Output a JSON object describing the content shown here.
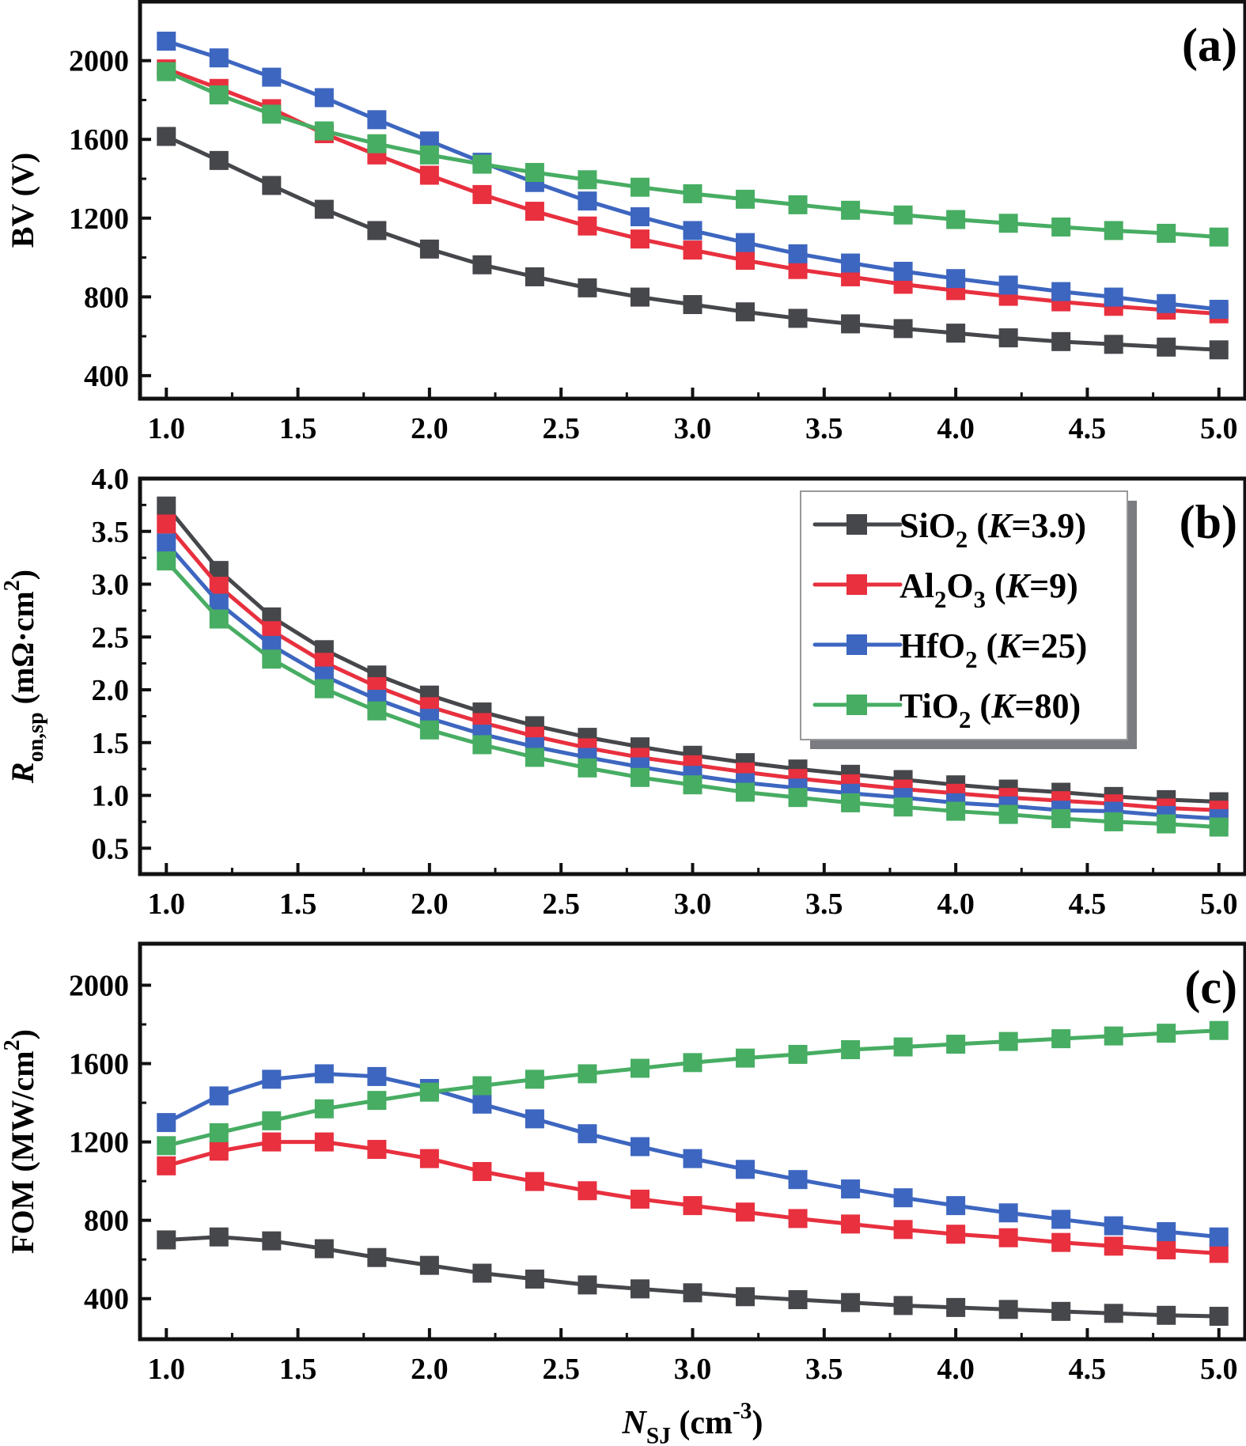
{
  "chart_data": [
    {
      "type": "line",
      "panel_label": "(a)",
      "ylabel": [
        {
          "t": "BV (V)"
        }
      ],
      "xlim": [
        0.9,
        5.1
      ],
      "ylim": [
        283,
        2300
      ],
      "yticks": [
        400,
        800,
        1200,
        1600,
        2000
      ],
      "ytick_labels": [
        "400",
        "800",
        "1200",
        "1600",
        "2000"
      ],
      "xticks": [
        1.0,
        1.5,
        2.0,
        2.5,
        3.0,
        3.5,
        4.0,
        4.5,
        5.0
      ],
      "xtick_labels": [
        "1.0",
        "1.5",
        "2.0",
        "2.5",
        "3.0",
        "3.5",
        "4.0",
        "4.5",
        "5.0"
      ],
      "x": [
        1.0,
        1.2,
        1.4,
        1.6,
        1.8,
        2.0,
        2.2,
        2.4,
        2.6,
        2.8,
        3.0,
        3.2,
        3.4,
        3.6,
        3.8,
        4.0,
        4.2,
        4.4,
        4.6,
        4.8,
        5.0
      ],
      "series": [
        {
          "key": "SiO2",
          "color": "#45474b",
          "values": [
            1615,
            1493,
            1366,
            1245,
            1137,
            1043,
            963,
            902,
            846,
            799,
            761,
            724,
            691,
            663,
            639,
            616,
            592,
            573,
            559,
            545,
            531
          ]
        },
        {
          "key": "Al2O3",
          "color": "#e8303f",
          "values": [
            1958,
            1859,
            1756,
            1629,
            1521,
            1418,
            1320,
            1235,
            1160,
            1094,
            1038,
            986,
            939,
            902,
            864,
            832,
            803,
            775,
            752,
            733,
            714
          ]
        },
        {
          "key": "HfO2",
          "color": "#3d66c0",
          "values": [
            2099,
            2014,
            1916,
            1812,
            1700,
            1592,
            1484,
            1381,
            1287,
            1207,
            1137,
            1076,
            1019,
            972,
            930,
            893,
            860,
            827,
            799,
            766,
            737
          ]
        },
        {
          "key": "TiO2",
          "color": "#47ad63",
          "values": [
            1944,
            1826,
            1728,
            1643,
            1578,
            1521,
            1474,
            1432,
            1395,
            1357,
            1324,
            1296,
            1268,
            1240,
            1216,
            1193,
            1174,
            1155,
            1137,
            1123,
            1104
          ]
        }
      ]
    },
    {
      "type": "line",
      "panel_label": "(b)",
      "ylabel": [
        {
          "t": "R",
          "s": "i"
        },
        {
          "t": "on,sp",
          "s": "sub"
        },
        {
          "t": " (mΩ·cm"
        },
        {
          "t": "2",
          "s": "sup"
        },
        {
          "t": ")"
        }
      ],
      "xlim": [
        0.9,
        5.1
      ],
      "ylim": [
        0.255,
        4.0
      ],
      "yticks": [
        0.5,
        1.0,
        1.5,
        2.0,
        2.5,
        3.0,
        3.5,
        4.0
      ],
      "ytick_labels": [
        "0.5",
        "1.0",
        "1.5",
        "2.0",
        "2.5",
        "3.0",
        "3.5",
        "4.0"
      ],
      "xticks": [
        1.0,
        1.5,
        2.0,
        2.5,
        3.0,
        3.5,
        4.0,
        4.5,
        5.0
      ],
      "xtick_labels": [
        "1.0",
        "1.5",
        "2.0",
        "2.5",
        "3.0",
        "3.5",
        "4.0",
        "4.5",
        "5.0"
      ],
      "x": [
        1.0,
        1.2,
        1.4,
        1.6,
        1.8,
        2.0,
        2.2,
        2.4,
        2.6,
        2.8,
        3.0,
        3.2,
        3.4,
        3.6,
        3.8,
        4.0,
        4.2,
        4.4,
        4.6,
        4.8,
        5.0
      ],
      "series": [
        {
          "key": "SiO2",
          "color": "#45474b",
          "values": [
            3.74,
            3.13,
            2.69,
            2.38,
            2.14,
            1.95,
            1.79,
            1.66,
            1.55,
            1.46,
            1.38,
            1.31,
            1.25,
            1.2,
            1.15,
            1.1,
            1.06,
            1.03,
            0.99,
            0.96,
            0.94
          ]
        },
        {
          "key": "Al2O3",
          "color": "#e8303f",
          "values": [
            3.57,
            2.98,
            2.56,
            2.26,
            2.03,
            1.84,
            1.69,
            1.56,
            1.45,
            1.36,
            1.29,
            1.22,
            1.16,
            1.11,
            1.06,
            1.02,
            0.98,
            0.95,
            0.92,
            0.88,
            0.86
          ]
        },
        {
          "key": "HfO2",
          "color": "#3d66c0",
          "values": [
            3.39,
            2.82,
            2.42,
            2.13,
            1.91,
            1.73,
            1.58,
            1.46,
            1.36,
            1.27,
            1.19,
            1.12,
            1.07,
            1.02,
            0.98,
            0.93,
            0.9,
            0.86,
            0.85,
            0.81,
            0.78
          ]
        },
        {
          "key": "TiO2",
          "color": "#47ad63",
          "values": [
            3.22,
            2.67,
            2.29,
            2.01,
            1.8,
            1.62,
            1.48,
            1.36,
            1.26,
            1.17,
            1.1,
            1.03,
            0.98,
            0.93,
            0.89,
            0.85,
            0.82,
            0.78,
            0.75,
            0.73,
            0.7
          ]
        }
      ],
      "legend": {
        "placement": "top-right",
        "entries": [
          {
            "key": "SiO2",
            "color": "#45474b",
            "label": [
              {
                "t": "SiO"
              },
              {
                "t": "2",
                "s": "sub"
              },
              {
                "t": " ("
              },
              {
                "t": "K",
                "s": "i"
              },
              {
                "t": "=3.9)"
              }
            ]
          },
          {
            "key": "Al2O3",
            "color": "#e8303f",
            "label": [
              {
                "t": "Al"
              },
              {
                "t": "2",
                "s": "sub"
              },
              {
                "t": "O"
              },
              {
                "t": "3",
                "s": "sub"
              },
              {
                "t": " ("
              },
              {
                "t": "K",
                "s": "i"
              },
              {
                "t": "=9)"
              }
            ]
          },
          {
            "key": "HfO2",
            "color": "#3d66c0",
            "label": [
              {
                "t": "HfO"
              },
              {
                "t": "2",
                "s": "sub"
              },
              {
                "t": " ("
              },
              {
                "t": "K",
                "s": "i"
              },
              {
                "t": "=25)"
              }
            ]
          },
          {
            "key": "TiO2",
            "color": "#47ad63",
            "label": [
              {
                "t": "TiO"
              },
              {
                "t": "2",
                "s": "sub"
              },
              {
                "t": " ("
              },
              {
                "t": "K",
                "s": "i"
              },
              {
                "t": "=80)"
              }
            ]
          }
        ]
      }
    },
    {
      "type": "line",
      "panel_label": "(c)",
      "ylabel": [
        {
          "t": "FOM (MW/cm"
        },
        {
          "t": "2",
          "s": "sup"
        },
        {
          "t": ")"
        }
      ],
      "xlabel": [
        {
          "t": "N",
          "s": "i"
        },
        {
          "t": "SJ",
          "s": "sub"
        },
        {
          "t": " (cm"
        },
        {
          "t": "-3",
          "s": "sup"
        },
        {
          "t": ")"
        }
      ],
      "xlim": [
        0.9,
        5.1
      ],
      "ylim": [
        193,
        2212
      ],
      "yticks": [
        400,
        800,
        1200,
        1600,
        2000
      ],
      "ytick_labels": [
        "400",
        "800",
        "1200",
        "1600",
        "2000"
      ],
      "xticks": [
        1.0,
        1.5,
        2.0,
        2.5,
        3.0,
        3.5,
        4.0,
        4.5,
        5.0
      ],
      "xtick_labels": [
        "1.0",
        "1.5",
        "2.0",
        "2.5",
        "3.0",
        "3.5",
        "4.0",
        "4.5",
        "5.0"
      ],
      "x": [
        1.0,
        1.2,
        1.4,
        1.6,
        1.8,
        2.0,
        2.2,
        2.4,
        2.6,
        2.8,
        3.0,
        3.2,
        3.4,
        3.6,
        3.8,
        4.0,
        4.2,
        4.4,
        4.6,
        4.8,
        5.0
      ],
      "series": [
        {
          "key": "SiO2",
          "color": "#45474b",
          "values": [
            700,
            715,
            695,
            655,
            610,
            570,
            530,
            500,
            470,
            450,
            430,
            410,
            395,
            380,
            365,
            355,
            345,
            335,
            325,
            315,
            310
          ]
        },
        {
          "key": "Al2O3",
          "color": "#e8303f",
          "values": [
            1078,
            1153,
            1200,
            1200,
            1162,
            1115,
            1049,
            998,
            951,
            908,
            875,
            842,
            809,
            781,
            753,
            729,
            711,
            687,
            668,
            649,
            631
          ]
        },
        {
          "key": "HfO2",
          "color": "#3d66c0",
          "values": [
            1299,
            1435,
            1520,
            1548,
            1534,
            1473,
            1393,
            1318,
            1242,
            1176,
            1115,
            1060,
            1008,
            960,
            915,
            875,
            838,
            805,
            772,
            742,
            715
          ]
        },
        {
          "key": "TiO2",
          "color": "#47ad63",
          "values": [
            1181,
            1247,
            1308,
            1369,
            1412,
            1454,
            1487,
            1520,
            1548,
            1576,
            1605,
            1628,
            1647,
            1671,
            1685,
            1699,
            1713,
            1727,
            1741,
            1755,
            1769
          ]
        }
      ]
    }
  ]
}
